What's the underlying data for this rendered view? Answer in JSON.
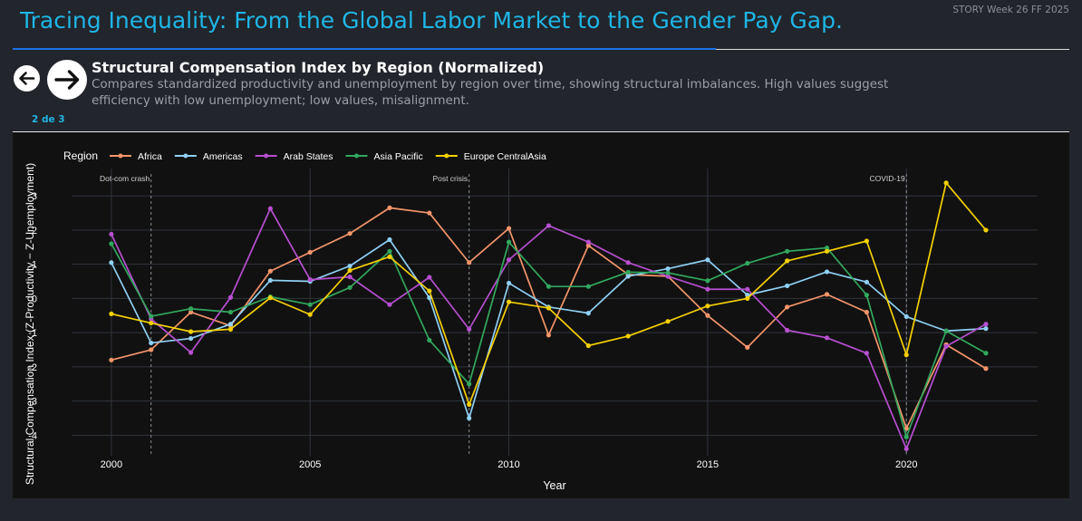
{
  "header": {
    "title": "Tracing Inequality: From the Global Labor Market to the Gender Pay Gap.",
    "story_tag": "STORY Week 26 FF 2025"
  },
  "slide": {
    "title": "Structural Compensation Index by Region (Normalized)",
    "subtitle": "Compares standardized productivity and unemployment by region over time, showing structural imbalances. High values suggest efficiency with low unemployment; low values, misalignment.",
    "page_indicator": "2 de 3"
  },
  "icons": {
    "prev": "arrow-left-icon",
    "next": "arrow-right-icon"
  },
  "colors": {
    "title_accent": "#1fb6e6",
    "Africa": "#f4956a",
    "Americas": "#8fd0f5",
    "Arab States": "#b84fd1",
    "Asia Pacific": "#32a85e",
    "Europe CentralAsia": "#f5d000"
  },
  "chart_data": {
    "type": "line",
    "xlabel": "Year",
    "ylabel": "Structural Compensation Index (Z-Productivity − Z-Unemployment)",
    "legend_title": "Region",
    "legend_position": "top-left",
    "grid": true,
    "xlim": [
      1999,
      2023.3
    ],
    "ylim": [
      -4.6,
      3.8
    ],
    "x_ticks": [
      2000,
      2005,
      2010,
      2015,
      2020
    ],
    "y_ticks": [
      -4,
      -3,
      -2,
      -1,
      0,
      1,
      2,
      3
    ],
    "x": [
      2000,
      2001,
      2002,
      2003,
      2004,
      2005,
      2006,
      2007,
      2008,
      2009,
      2010,
      2011,
      2012,
      2013,
      2014,
      2015,
      2016,
      2017,
      2018,
      2019,
      2020,
      2021,
      2022
    ],
    "annotations": [
      {
        "x": 2001,
        "label": "Dot-com crash"
      },
      {
        "x": 2009,
        "label": "Post crisis"
      },
      {
        "x": 2020,
        "label": "COVID-19"
      }
    ],
    "series": [
      {
        "name": "Africa",
        "values": [
          -1.8,
          -1.5,
          -0.4,
          -0.8,
          0.8,
          1.35,
          1.9,
          2.65,
          2.5,
          1.05,
          2.05,
          -1.07,
          1.55,
          0.7,
          0.65,
          -0.5,
          -1.43,
          -0.25,
          0.12,
          -0.4,
          -3.8,
          -1.35,
          -2.05
        ]
      },
      {
        "name": "Americas",
        "values": [
          1.05,
          -1.3,
          -1.17,
          -0.75,
          0.53,
          0.5,
          0.95,
          1.72,
          0.02,
          -3.5,
          0.45,
          -0.25,
          -0.43,
          0.65,
          0.87,
          1.13,
          0.1,
          0.37,
          0.78,
          0.48,
          -0.53,
          -0.95,
          -0.88
        ]
      },
      {
        "name": "Arab States",
        "values": [
          1.88,
          -0.6,
          -1.58,
          0.03,
          2.63,
          0.55,
          0.63,
          -0.18,
          0.62,
          -0.9,
          1.13,
          2.13,
          1.65,
          1.05,
          0.65,
          0.27,
          0.27,
          -0.93,
          -1.15,
          -1.6,
          -4.4,
          -1.4,
          -0.75
        ]
      },
      {
        "name": "Asia Pacific",
        "values": [
          1.6,
          -0.52,
          -0.3,
          -0.4,
          0.05,
          -0.18,
          0.32,
          1.38,
          -1.22,
          -2.5,
          1.65,
          0.35,
          0.35,
          0.77,
          0.75,
          0.52,
          1.03,
          1.38,
          1.48,
          0.1,
          -4.05,
          -0.95,
          -1.6
        ]
      },
      {
        "name": "Europe CentralAsia",
        "values": [
          -0.45,
          -0.72,
          -0.97,
          -0.9,
          0.02,
          -0.47,
          0.82,
          1.22,
          0.22,
          -3.1,
          -0.1,
          -0.28,
          -1.38,
          -1.1,
          -0.67,
          -0.22,
          0.0,
          1.1,
          1.38,
          1.68,
          -1.65,
          3.38,
          2.0
        ]
      }
    ]
  }
}
